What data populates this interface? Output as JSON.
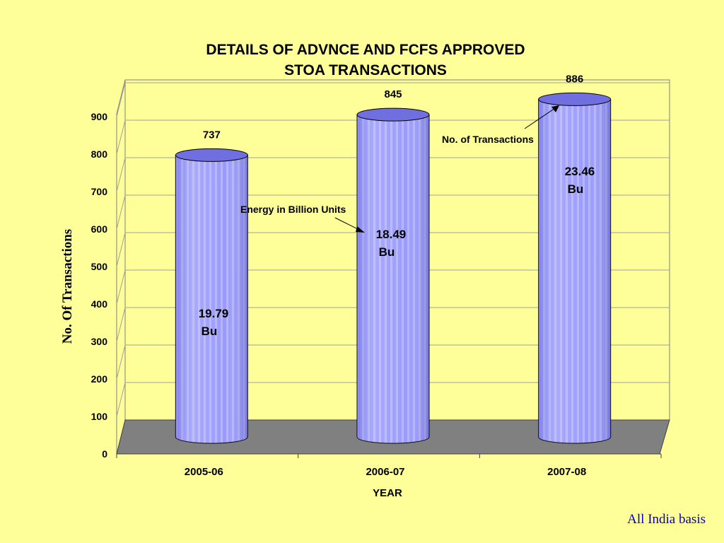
{
  "chart_data": {
    "type": "bar",
    "title_line1": "DETAILS OF ADVNCE AND FCFS APPROVED",
    "title_line2": "STOA TRANSACTIONS",
    "xlabel": "YEAR",
    "ylabel": "No. Of Transactions",
    "categories": [
      "2005-06",
      "2006-07",
      "2007-08"
    ],
    "series": [
      {
        "name": "No. of Transactions",
        "values": [
          737,
          845,
          886
        ]
      }
    ],
    "energy_labels": [
      [
        "19.79",
        "Bu"
      ],
      [
        "18.49",
        "Bu"
      ],
      [
        "23.46",
        "Bu"
      ]
    ],
    "ylim": [
      0,
      900
    ],
    "yticks": [
      0,
      100,
      200,
      300,
      400,
      500,
      600,
      700,
      800,
      900
    ],
    "annotations": {
      "transactions": "No. of Transactions",
      "energy": "Energy in Billion Units"
    },
    "grid": true,
    "colors": {
      "bar_fill": "#9999FF",
      "bar_stripe": "#B8B8FF",
      "bar_top": "#6F6FE0",
      "floor": "#808080",
      "background": "#FFFF99"
    }
  },
  "footnote": "All India basis"
}
